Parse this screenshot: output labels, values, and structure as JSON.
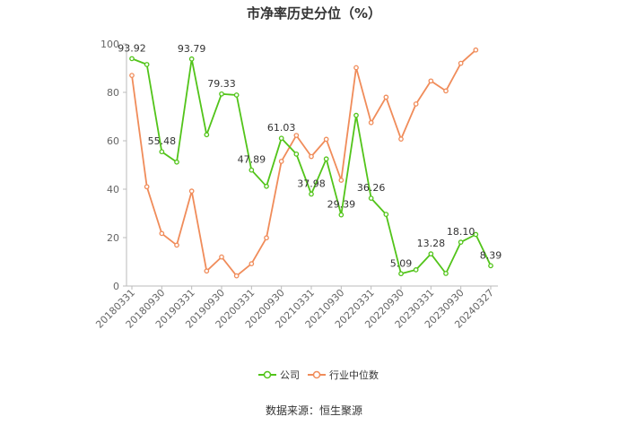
{
  "title": "市净率历史分位（%）",
  "source": "数据来源：恒生聚源",
  "colors": {
    "company": "#52c41a",
    "industry": "#f08c5a",
    "axis": "#bbbbbb",
    "text": "#666666"
  },
  "chart_data": {
    "type": "line",
    "title": "市净率历史分位（%）",
    "xlabel": "",
    "ylabel": "",
    "ylim": [
      0,
      100
    ],
    "yticks": [
      0,
      20,
      40,
      60,
      80,
      100
    ],
    "grid": false,
    "legend_position": "bottom",
    "x": [
      "20180331",
      "20180630",
      "20180930",
      "20181231",
      "20190331",
      "20190630",
      "20190930",
      "20191231",
      "20200331",
      "20200630",
      "20200930",
      "20201231",
      "20210331",
      "20210630",
      "20210930",
      "20211231",
      "20220331",
      "20220630",
      "20220930",
      "20221231",
      "20230331",
      "20230630",
      "20230930",
      "20231231",
      "20240327"
    ],
    "xticks": [
      "20180331",
      "20180930",
      "20190331",
      "20190930",
      "20200331",
      "20200930",
      "20210331",
      "20210930",
      "20220331",
      "20220930",
      "20230331",
      "20230930",
      "20240327"
    ],
    "series": [
      {
        "name": "公司",
        "values": [
          93.92,
          91.5,
          55.48,
          51.2,
          93.79,
          62.5,
          79.33,
          78.9,
          47.89,
          41.2,
          61.03,
          54.5,
          37.98,
          52.5,
          29.39,
          70.5,
          36.26,
          29.6,
          5.09,
          6.7,
          13.28,
          5.2,
          18.1,
          21.3,
          8.39
        ],
        "labels": [
          "93.92",
          "",
          "55.48",
          "",
          "93.79",
          "",
          "79.33",
          "",
          "47.89",
          "",
          "61.03",
          "",
          "37.98",
          "",
          "29.39",
          "",
          "36.26",
          "",
          "5.09",
          "",
          "13.28",
          "",
          "18.10",
          "",
          "8.39"
        ]
      },
      {
        "name": "行业中位数",
        "values": [
          87.0,
          41.0,
          21.7,
          16.9,
          39.2,
          6.2,
          12.0,
          4.2,
          9.2,
          19.9,
          51.5,
          62.2,
          53.5,
          60.6,
          43.7,
          90.2,
          67.5,
          78.0,
          60.7,
          75.2,
          84.7,
          80.6,
          92.0,
          97.5,
          null
        ]
      }
    ]
  }
}
